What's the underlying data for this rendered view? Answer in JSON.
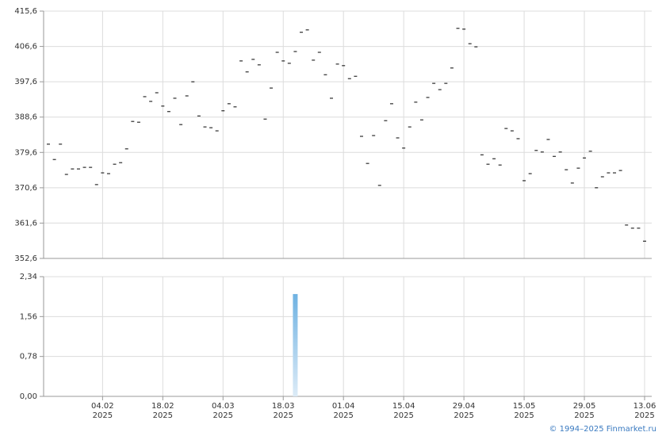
{
  "chart_data": {
    "type": "price-volume",
    "categories": [
      null,
      null,
      null,
      null,
      null,
      null,
      null,
      null,
      null,
      "04.02\n2025",
      null,
      null,
      null,
      null,
      null,
      null,
      null,
      null,
      null,
      "18.02\n2025",
      null,
      null,
      null,
      null,
      null,
      null,
      null,
      null,
      null,
      "04.03\n2025",
      null,
      null,
      null,
      null,
      null,
      null,
      null,
      null,
      null,
      "18.03\n2025",
      null,
      null,
      null,
      null,
      null,
      null,
      null,
      null,
      null,
      "01.04\n2025",
      null,
      null,
      null,
      null,
      null,
      null,
      null,
      null,
      null,
      "15.04\n2025",
      null,
      null,
      null,
      null,
      null,
      null,
      null,
      null,
      null,
      "29.04\n2025",
      null,
      null,
      null,
      null,
      null,
      null,
      null,
      null,
      null,
      "15.05\n2025",
      null,
      null,
      null,
      null,
      null,
      null,
      null,
      null,
      null,
      "29.05\n2025",
      null,
      null,
      null,
      null,
      null,
      null,
      null,
      null,
      null,
      "13.06\n2025"
    ],
    "price": {
      "color": "#000000",
      "values": [
        381.7,
        377.8,
        381.7,
        374.0,
        375.4,
        375.4,
        375.8,
        375.8,
        371.4,
        374.4,
        374.2,
        376.6,
        377.0,
        380.5,
        387.5,
        387.3,
        393.8,
        392.6,
        394.8,
        391.4,
        390.0,
        393.4,
        386.7,
        394.0,
        397.6,
        388.9,
        386.1,
        385.9,
        385.1,
        390.2,
        392.0,
        391.2,
        402.9,
        400.1,
        403.3,
        401.9,
        388.1,
        396.0,
        405.1,
        402.9,
        402.3,
        405.3,
        410.2,
        410.8,
        403.1,
        405.1,
        399.4,
        393.4,
        402.1,
        401.7,
        398.4,
        399.0,
        383.7,
        376.8,
        383.9,
        371.2,
        387.7,
        392.0,
        383.3,
        380.7,
        386.1,
        392.4,
        387.9,
        393.6,
        397.2,
        395.6,
        397.2,
        401.1,
        411.2,
        411.0,
        407.3,
        406.5,
        379.0,
        376.6,
        378.0,
        376.4,
        385.7,
        385.1,
        383.1,
        372.4,
        374.2,
        380.1,
        379.7,
        382.9,
        378.6,
        379.7,
        375.2,
        371.8,
        375.6,
        378.2,
        379.9,
        370.6,
        373.4,
        374.4,
        374.4,
        375.0,
        361.1,
        360.3,
        360.3,
        357.0
      ],
      "ylim": [
        352.6,
        415.6
      ],
      "yticks": [
        {
          "value": 352.6,
          "label": "352,6"
        },
        {
          "value": 361.6,
          "label": "361,6"
        },
        {
          "value": 370.6,
          "label": "370,6"
        },
        {
          "value": 379.6,
          "label": "379,6"
        },
        {
          "value": 388.6,
          "label": "388,6"
        },
        {
          "value": 397.6,
          "label": "397,6"
        },
        {
          "value": 406.6,
          "label": "406,6"
        },
        {
          "value": 415.6,
          "label": "415,6"
        }
      ]
    },
    "volume": {
      "color": "#6fb2e2",
      "values": [
        0,
        0,
        0,
        0,
        0,
        0,
        0,
        0,
        0,
        0,
        0,
        0,
        0,
        0,
        0,
        0,
        0,
        0,
        0,
        0,
        0,
        0,
        0,
        0,
        0,
        0,
        0,
        0,
        0,
        0,
        0,
        0,
        0,
        0,
        0,
        0,
        0,
        0,
        0,
        0,
        0,
        2.0,
        0,
        0,
        0,
        0,
        0,
        0,
        0,
        0,
        0,
        0,
        0,
        0,
        0,
        0,
        0,
        0,
        0,
        0,
        0,
        0,
        0,
        0,
        0,
        0,
        0,
        0,
        0,
        0,
        0,
        0,
        0,
        0,
        0,
        0,
        0,
        0,
        0,
        0,
        0,
        0,
        0,
        0,
        0,
        0,
        0,
        0,
        0,
        0,
        0,
        0,
        0,
        0,
        0,
        0,
        0,
        0,
        0,
        0
      ],
      "ylim": [
        0,
        2.34
      ],
      "yticks": [
        {
          "value": 0,
          "label": "0,00"
        },
        {
          "value": 0.78,
          "label": "0,78"
        },
        {
          "value": 1.56,
          "label": "1,56"
        },
        {
          "value": 2.34,
          "label": "2,34"
        }
      ]
    },
    "grid": true
  },
  "footer": "© 1994–2025 Finmarket.ru"
}
